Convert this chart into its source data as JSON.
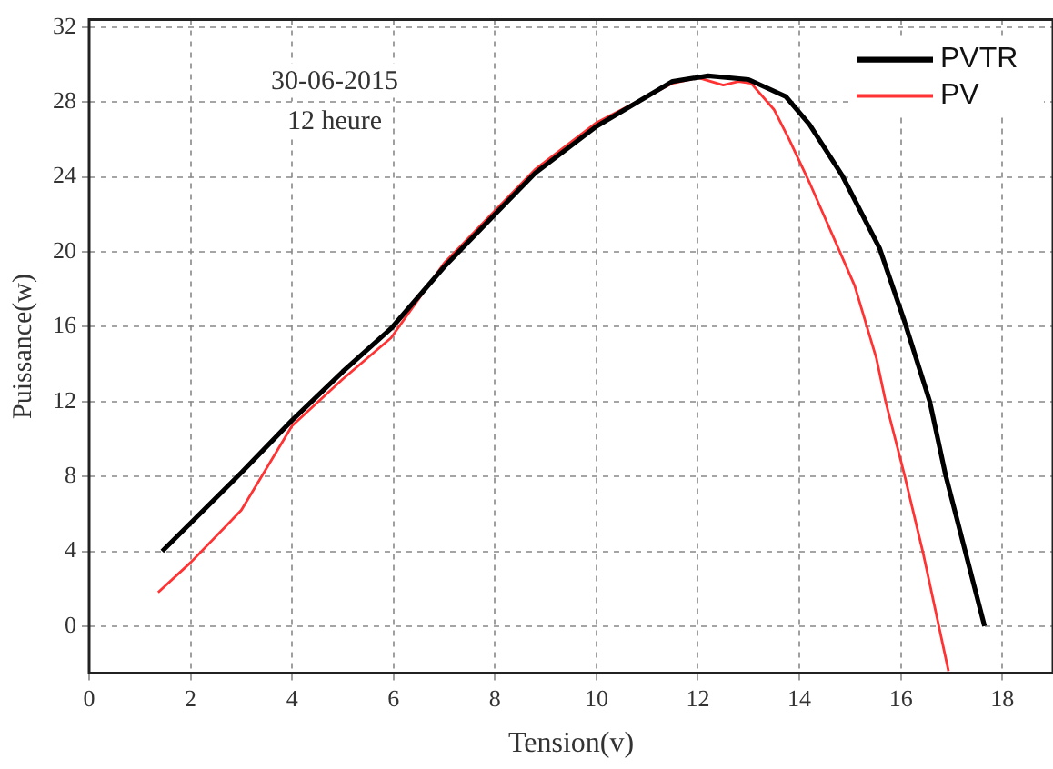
{
  "chart_data": {
    "type": "line",
    "xlabel": "Tension(v)",
    "ylabel": "Puissance(w)",
    "annotations": [
      "30-06-2015",
      "12 heure"
    ],
    "xlim": [
      0,
      19
    ],
    "xticks": [
      0,
      2,
      4,
      6,
      8,
      10,
      12,
      14,
      16,
      18
    ],
    "ylim": [
      -2.5,
      32.4
    ],
    "yticks": [
      0,
      4,
      8,
      12,
      16,
      20,
      24,
      28,
      32
    ],
    "grid": true,
    "legend": "top right",
    "marker": "none",
    "line_style": "solid",
    "series": [
      {
        "name": "PVTR",
        "color": "#000000",
        "x": [
          1.44,
          3,
          4,
          5,
          5.95,
          7,
          8,
          8.79,
          10,
          11,
          11.5,
          12.2,
          13,
          13.73,
          14.2,
          14.84,
          15.58,
          16.07,
          16.57,
          16.88,
          17.65
        ],
        "values": [
          4.0,
          8.2,
          11.0,
          13.6,
          15.9,
          19.2,
          22.0,
          24.2,
          26.7,
          28.3,
          29.1,
          29.4,
          29.2,
          28.3,
          26.8,
          24.1,
          20.2,
          16.3,
          12.0,
          8.1,
          0
        ]
      },
      {
        "name": "PV",
        "color": "#ff3333",
        "x": [
          1.36,
          2,
          3,
          4,
          5,
          5.95,
          7,
          8,
          8.79,
          10,
          11,
          11.5,
          12,
          12.5,
          12.8,
          13.05,
          13.5,
          13.8,
          14.2,
          15.09,
          15.52,
          15.7,
          16.07,
          16.44,
          16.94
        ],
        "values": [
          1.8,
          3.4,
          6.2,
          10.7,
          13.2,
          15.4,
          19.4,
          22.2,
          24.4,
          26.9,
          28.3,
          29.0,
          29.3,
          28.9,
          29.1,
          29.0,
          27.6,
          26.0,
          23.7,
          18.2,
          14.3,
          12.0,
          8.1,
          3.9,
          -2.4
        ]
      }
    ]
  }
}
